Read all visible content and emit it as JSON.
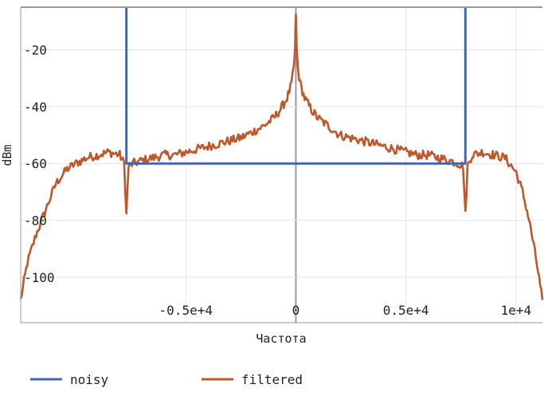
{
  "chart_data": {
    "type": "line",
    "title": "",
    "xlabel": "Частота",
    "ylabel": "dBm",
    "xlim": [
      -12500,
      11200
    ],
    "ylim": [
      -116,
      -5
    ],
    "grid": true,
    "legend_placement": "bottom-left",
    "x_ticks": [
      {
        "value": -5000,
        "label": "-0.5e+4"
      },
      {
        "value": 0,
        "label": "0"
      },
      {
        "value": 5000,
        "label": "0.5e+4"
      },
      {
        "value": 10000,
        "label": "1e+4"
      }
    ],
    "y_ticks": [
      {
        "value": -20,
        "label": "-20"
      },
      {
        "value": -40,
        "label": "-40"
      },
      {
        "value": -60,
        "label": "-60"
      },
      {
        "value": -80,
        "label": "-80"
      },
      {
        "value": -100,
        "label": "-100"
      }
    ],
    "series": [
      {
        "name": "noisy",
        "color": "#4068b0",
        "points": [
          [
            -7700,
            -5
          ],
          [
            -7700,
            -60
          ],
          [
            7700,
            -60
          ],
          [
            7700,
            -5
          ]
        ]
      },
      {
        "name": "filtered",
        "color": "#c0562a",
        "points": [
          [
            -12500,
            -108
          ],
          [
            -12200,
            -95
          ],
          [
            -11800,
            -85
          ],
          [
            -11300,
            -75
          ],
          [
            -10900,
            -67
          ],
          [
            -10400,
            -62
          ],
          [
            -10000,
            -60
          ],
          [
            -9500,
            -58
          ],
          [
            -9000,
            -57
          ],
          [
            -8500,
            -56
          ],
          [
            -8000,
            -57
          ],
          [
            -7800,
            -60
          ],
          [
            -7700,
            -78
          ],
          [
            -7600,
            -61
          ],
          [
            -7400,
            -60
          ],
          [
            -7000,
            -59
          ],
          [
            -6500,
            -58
          ],
          [
            -6000,
            -57
          ],
          [
            -5500,
            -57
          ],
          [
            -5000,
            -56
          ],
          [
            -4500,
            -55
          ],
          [
            -4000,
            -54
          ],
          [
            -3500,
            -53
          ],
          [
            -3000,
            -52
          ],
          [
            -2500,
            -51
          ],
          [
            -2000,
            -49
          ],
          [
            -1500,
            -47
          ],
          [
            -1000,
            -44
          ],
          [
            -700,
            -41
          ],
          [
            -400,
            -37
          ],
          [
            -200,
            -32
          ],
          [
            -100,
            -27
          ],
          [
            -40,
            -20
          ],
          [
            0,
            -7
          ],
          [
            40,
            -20
          ],
          [
            100,
            -27
          ],
          [
            200,
            -32
          ],
          [
            400,
            -37
          ],
          [
            700,
            -41
          ],
          [
            1000,
            -44
          ],
          [
            1500,
            -47
          ],
          [
            2000,
            -50
          ],
          [
            2500,
            -51
          ],
          [
            3000,
            -52
          ],
          [
            3500,
            -53
          ],
          [
            4000,
            -54
          ],
          [
            4500,
            -55
          ],
          [
            5000,
            -56
          ],
          [
            5500,
            -57
          ],
          [
            6000,
            -57
          ],
          [
            6500,
            -58
          ],
          [
            7000,
            -59
          ],
          [
            7400,
            -60
          ],
          [
            7600,
            -61
          ],
          [
            7700,
            -78
          ],
          [
            7800,
            -61
          ],
          [
            8000,
            -57
          ],
          [
            8500,
            -56
          ],
          [
            9000,
            -57
          ],
          [
            9500,
            -58
          ],
          [
            10000,
            -63
          ],
          [
            10300,
            -70
          ],
          [
            10600,
            -80
          ],
          [
            10900,
            -93
          ],
          [
            11100,
            -103
          ],
          [
            11200,
            -108
          ]
        ]
      }
    ]
  }
}
